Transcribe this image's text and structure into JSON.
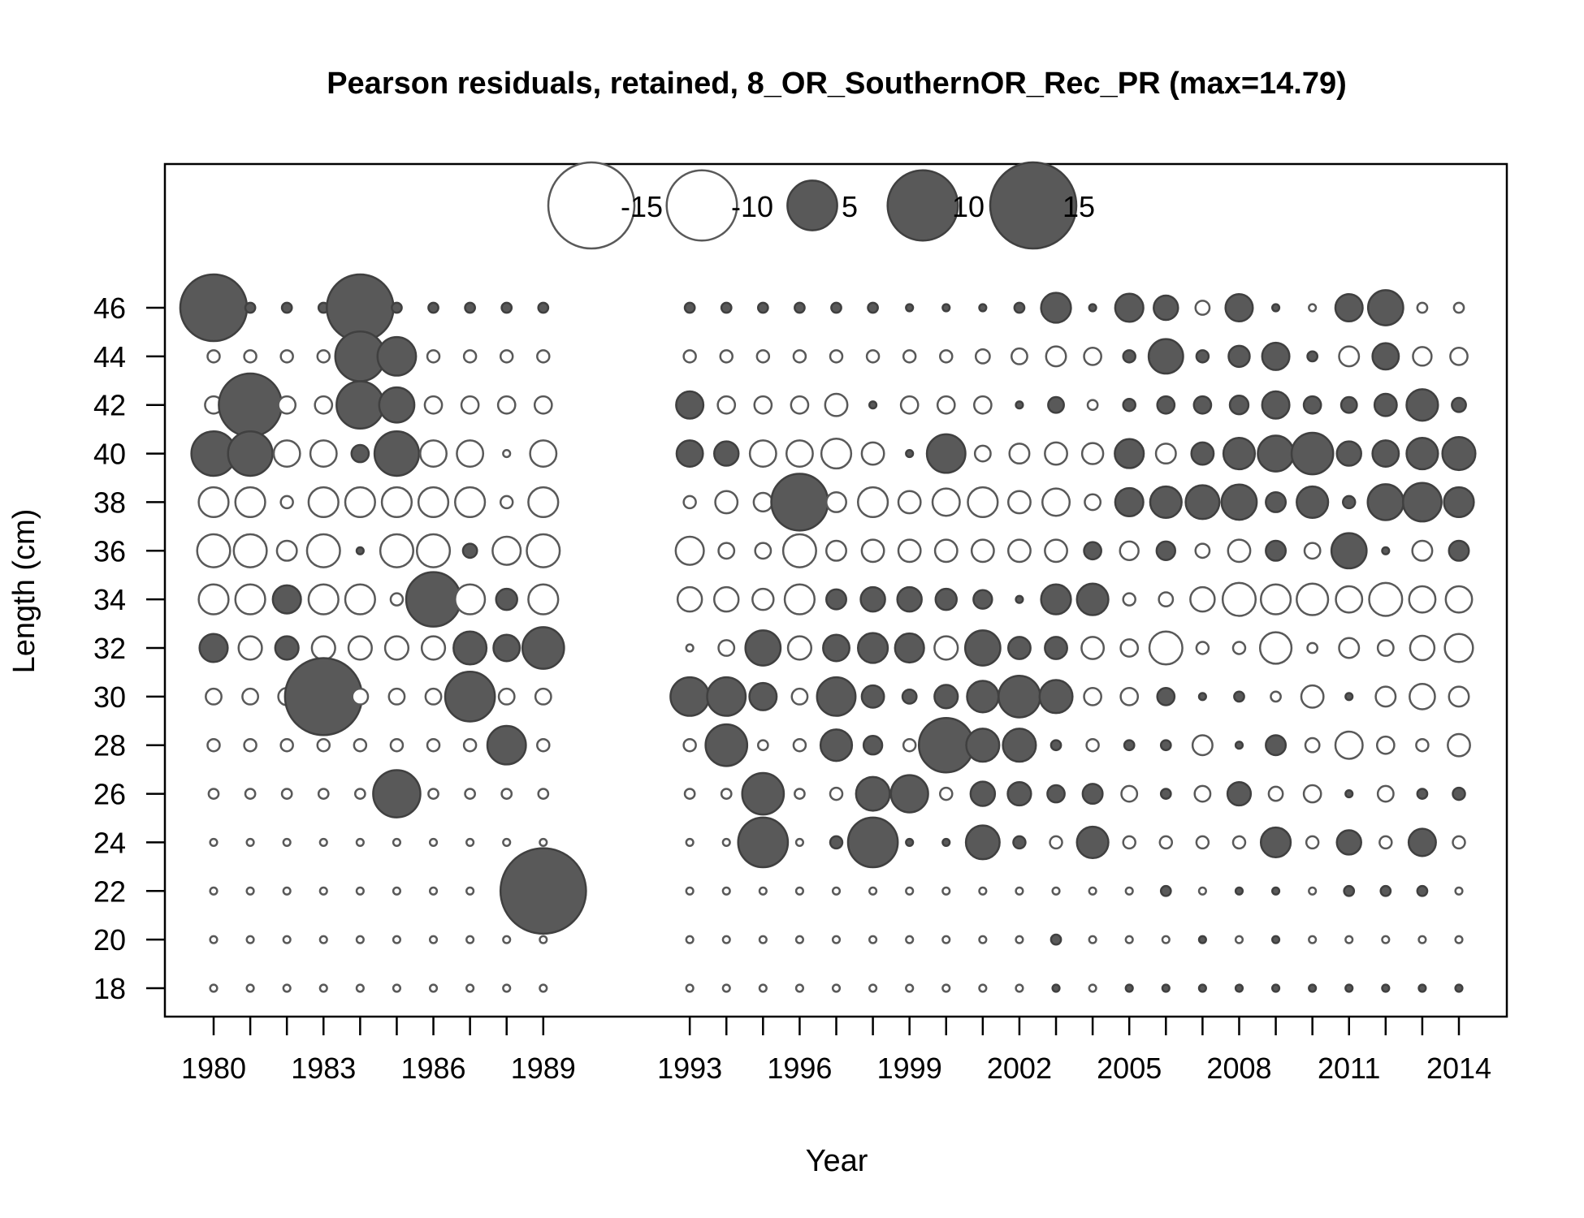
{
  "chart_data": {
    "type": "bubble",
    "title": "Pearson residuals, retained, 8_OR_SouthernOR_Rec_PR (max=14.79)",
    "xlabel": "Year",
    "ylabel": "Length (cm)",
    "x_ticks": [
      1980,
      1983,
      1986,
      1989,
      1993,
      1996,
      1999,
      2002,
      2005,
      2008,
      2011,
      2014
    ],
    "x_minor_ticks": [
      1980,
      1981,
      1982,
      1983,
      1984,
      1985,
      1986,
      1987,
      1988,
      1989,
      1993,
      1994,
      1995,
      1996,
      1997,
      1998,
      1999,
      2000,
      2001,
      2002,
      2003,
      2004,
      2005,
      2006,
      2007,
      2008,
      2009,
      2010,
      2011,
      2012,
      2013,
      2014
    ],
    "y_ticks": [
      18,
      20,
      22,
      24,
      26,
      28,
      30,
      32,
      34,
      36,
      38,
      40,
      42,
      44,
      46
    ],
    "legend": {
      "placement": "top-center",
      "items": [
        {
          "label": "-15",
          "value": -15
        },
        {
          "label": "-10",
          "value": -10
        },
        {
          "label": "5",
          "value": 5
        },
        {
          "label": "10",
          "value": 10
        },
        {
          "label": "15",
          "value": 15
        }
      ]
    },
    "colors": {
      "positive_fill": "#595959",
      "positive_stroke": "#404040",
      "negative_fill": "#ffffff",
      "negative_stroke": "#595959"
    },
    "lengths": [
      46,
      44,
      42,
      40,
      38,
      36,
      34,
      32,
      30,
      28,
      26,
      24,
      22,
      20,
      18
    ],
    "series": [
      {
        "year": 1980,
        "values": [
          9.0,
          -0.3,
          -0.6,
          4.0,
          -1.8,
          -2.2,
          -1.8,
          1.6,
          -0.5,
          -0.3,
          -0.2,
          -0.1,
          -0.1,
          -0.1,
          -0.1
        ]
      },
      {
        "year": 1981,
        "values": [
          0.2,
          -0.3,
          8.0,
          4.0,
          -1.8,
          -2.2,
          -1.8,
          -1.1,
          -0.5,
          -0.3,
          -0.2,
          -0.1,
          -0.1,
          -0.1,
          -0.1
        ]
      },
      {
        "year": 1982,
        "values": [
          0.2,
          -0.3,
          -0.6,
          -1.4,
          -0.3,
          -0.8,
          1.6,
          1.1,
          -0.6,
          -0.3,
          -0.2,
          -0.1,
          -0.1,
          -0.1,
          -0.1
        ]
      },
      {
        "year": 1983,
        "values": [
          0.2,
          -0.3,
          -0.6,
          -1.4,
          -1.8,
          -2.2,
          -1.8,
          -1.1,
          12.0,
          -0.3,
          -0.2,
          -0.1,
          -0.1,
          -0.1,
          -0.1
        ]
      },
      {
        "year": 1984,
        "values": [
          9.0,
          5.0,
          4.5,
          0.6,
          -1.8,
          0.1,
          -1.8,
          -1.1,
          -0.5,
          -0.3,
          -0.2,
          -0.1,
          -0.1,
          -0.1,
          -0.1
        ]
      },
      {
        "year": 1985,
        "values": [
          0.2,
          3.0,
          2.5,
          4.0,
          -1.8,
          -2.2,
          -0.3,
          -1.1,
          -0.5,
          -0.3,
          4.5,
          -0.1,
          -0.1,
          -0.1,
          -0.1
        ]
      },
      {
        "year": 1986,
        "values": [
          0.2,
          -0.3,
          -0.6,
          -1.4,
          -1.8,
          -2.2,
          6.0,
          -1.1,
          -0.5,
          -0.3,
          -0.2,
          -0.1,
          -0.1,
          -0.1,
          -0.1
        ]
      },
      {
        "year": 1987,
        "values": [
          0.2,
          -0.3,
          -0.6,
          -1.4,
          -1.8,
          0.4,
          -1.8,
          2.2,
          5.0,
          -0.3,
          -0.2,
          -0.1,
          -0.1,
          -0.1,
          -0.1
        ]
      },
      {
        "year": 1988,
        "values": [
          0.2,
          -0.3,
          -0.6,
          -0.1,
          -0.3,
          -1.6,
          0.9,
          1.4,
          -0.5,
          3.0,
          -0.2,
          -0.1,
          -0.1,
          -0.1,
          -0.1
        ]
      },
      {
        "year": 1989,
        "values": [
          0.2,
          -0.3,
          -0.6,
          -1.4,
          -1.8,
          -2.2,
          -1.8,
          3.5,
          -0.5,
          -0.3,
          -0.2,
          -0.1,
          14.79,
          -0.1,
          -0.1
        ]
      },
      {
        "year": 1993,
        "values": [
          0.2,
          -0.3,
          1.5,
          1.4,
          -0.3,
          -1.6,
          -1.2,
          -0.1,
          3.0,
          -0.3,
          -0.2,
          -0.1,
          -0.1,
          -0.1,
          -0.1
        ]
      },
      {
        "year": 1994,
        "values": [
          0.2,
          -0.3,
          -0.6,
          1.2,
          -1.0,
          -0.5,
          -1.2,
          -0.5,
          3.0,
          3.5,
          -0.2,
          -0.1,
          -0.1,
          -0.1,
          -0.1
        ]
      },
      {
        "year": 1995,
        "values": [
          0.2,
          -0.3,
          -0.6,
          -1.4,
          -0.7,
          -0.5,
          -0.9,
          2.5,
          1.5,
          -0.2,
          3.5,
          5.0,
          -0.1,
          -0.1,
          -0.1
        ]
      },
      {
        "year": 1996,
        "values": [
          0.2,
          -0.3,
          -0.6,
          -1.4,
          6.5,
          -2.2,
          -1.8,
          -1.1,
          -0.5,
          -0.3,
          -0.2,
          -0.1,
          -0.1,
          -0.1,
          -0.1
        ]
      },
      {
        "year": 1997,
        "values": [
          0.2,
          -0.3,
          -1.0,
          -1.8,
          -0.8,
          -0.8,
          0.8,
          1.4,
          3.0,
          2.0,
          -0.3,
          0.3,
          -0.1,
          -0.1,
          -0.1
        ]
      },
      {
        "year": 1998,
        "values": [
          0.2,
          -0.3,
          0.1,
          -1.0,
          -1.8,
          -1.0,
          1.2,
          1.8,
          1.0,
          0.7,
          2.3,
          5.0,
          -0.1,
          -0.1,
          -0.1
        ]
      },
      {
        "year": 1999,
        "values": [
          0.1,
          -0.3,
          -0.6,
          0.1,
          -1.0,
          -1.0,
          1.2,
          1.7,
          0.4,
          -0.3,
          2.8,
          0.1,
          -0.1,
          -0.1,
          -0.1
        ]
      },
      {
        "year": 2000,
        "values": [
          0.1,
          -0.3,
          -0.6,
          3.0,
          -1.5,
          -1.0,
          0.9,
          -1.1,
          1.1,
          6.0,
          -0.3,
          0.1,
          -0.1,
          -0.1,
          -0.1
        ]
      },
      {
        "year": 2001,
        "values": [
          0.1,
          -0.4,
          -0.6,
          -0.5,
          -1.8,
          -1.0,
          0.7,
          2.5,
          2.0,
          2.2,
          1.2,
          2.3,
          -0.1,
          -0.1,
          -0.1
        ]
      },
      {
        "year": 2002,
        "values": [
          0.2,
          -0.5,
          0.1,
          -0.8,
          -1.0,
          -1.0,
          0.1,
          1.0,
          3.5,
          2.2,
          1.1,
          0.3,
          -0.1,
          -0.1,
          -0.1
        ]
      },
      {
        "year": 2003,
        "values": [
          1.8,
          -0.8,
          0.5,
          -1.0,
          -1.5,
          -1.0,
          1.8,
          1.0,
          2.2,
          0.2,
          0.6,
          -0.3,
          -0.1,
          0.2,
          0.1
        ]
      },
      {
        "year": 2004,
        "values": [
          0.1,
          -0.6,
          -0.2,
          -0.9,
          -0.5,
          0.6,
          2.0,
          -1.0,
          -0.6,
          -0.3,
          0.8,
          2.0,
          -0.1,
          -0.1,
          -0.1
        ]
      },
      {
        "year": 2005,
        "values": [
          1.6,
          0.3,
          0.3,
          1.7,
          1.6,
          -0.7,
          -0.3,
          -0.6,
          -0.6,
          0.2,
          -0.5,
          -0.3,
          -0.1,
          -0.1,
          0.1
        ]
      },
      {
        "year": 2006,
        "values": [
          1.2,
          2.4,
          0.6,
          -0.8,
          2.0,
          0.7,
          -0.4,
          -2.2,
          0.6,
          0.2,
          0.2,
          -0.3,
          0.2,
          -0.1,
          0.1
        ]
      },
      {
        "year": 2007,
        "values": [
          -0.4,
          0.3,
          0.6,
          1.0,
          2.3,
          -0.4,
          -1.2,
          -0.3,
          0.1,
          -0.8,
          -0.5,
          -0.3,
          -0.1,
          0.1,
          0.1
        ]
      },
      {
        "year": 2008,
        "values": [
          1.5,
          0.9,
          0.7,
          2.0,
          2.5,
          -1.0,
          -2.2,
          -0.3,
          0.2,
          0.1,
          1.1,
          -0.3,
          0.1,
          -0.1,
          0.1
        ]
      },
      {
        "year": 2009,
        "values": [
          0.1,
          1.5,
          1.5,
          2.6,
          0.8,
          0.8,
          -1.8,
          -2.0,
          -0.2,
          0.8,
          -0.4,
          1.8,
          0.1,
          0.1,
          0.1
        ]
      },
      {
        "year": 2010,
        "values": [
          -0.1,
          0.2,
          0.6,
          3.5,
          2.0,
          -0.5,
          -2.0,
          -0.2,
          -1.0,
          -0.4,
          -0.6,
          -0.3,
          -0.1,
          -0.1,
          0.1
        ]
      },
      {
        "year": 2011,
        "values": [
          1.5,
          -0.8,
          0.5,
          1.2,
          0.3,
          2.5,
          -1.4,
          -0.8,
          0.1,
          -1.5,
          0.1,
          1.2,
          0.2,
          -0.1,
          0.1
        ]
      },
      {
        "year": 2012,
        "values": [
          2.5,
          1.4,
          1.0,
          1.4,
          2.6,
          0.1,
          -2.2,
          -0.5,
          -0.8,
          -0.6,
          -0.5,
          -0.3,
          0.2,
          -0.1,
          0.1
        ]
      },
      {
        "year": 2013,
        "values": [
          -0.2,
          -0.7,
          2.0,
          2.0,
          3.0,
          -0.8,
          -1.4,
          -1.2,
          -1.3,
          -0.3,
          0.2,
          1.5,
          0.2,
          -0.1,
          0.1
        ]
      },
      {
        "year": 2014,
        "values": [
          -0.2,
          -0.6,
          0.4,
          2.2,
          1.8,
          0.8,
          -1.4,
          -1.6,
          -0.8,
          -1.0,
          0.3,
          -0.3,
          -0.1,
          -0.1,
          0.1
        ]
      }
    ]
  }
}
